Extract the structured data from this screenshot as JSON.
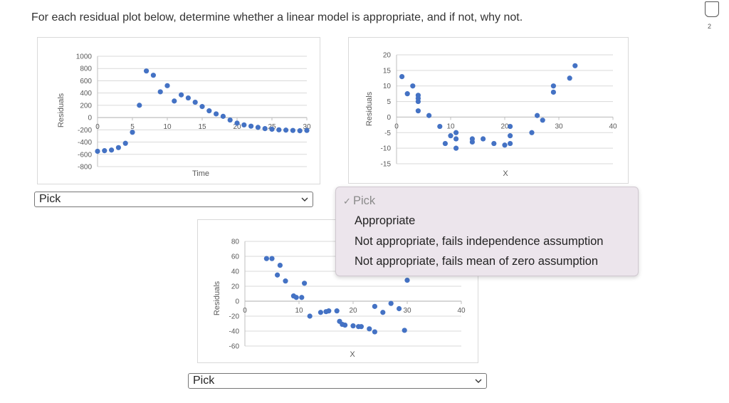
{
  "question": "For each residual plot below, determine whether a linear model is appropriate, and if not, why not.",
  "badge_number": "2",
  "selects": [
    {
      "value": "Pick"
    },
    {
      "value": "Pick"
    }
  ],
  "dropdown": {
    "check": "✓",
    "options": [
      "Pick",
      "Appropriate",
      "Not appropriate, fails independence assumption",
      "Not appropriate, fails mean of zero assumption"
    ],
    "selected": "Pick"
  },
  "colors": {
    "point": "#4472c4",
    "grid": "#d9d9d9",
    "axis": "#bfbfbf",
    "tick": "#595959"
  },
  "chart_data": [
    {
      "type": "scatter",
      "ylabel": "Residuals",
      "xlabel": "Time",
      "xlim": [
        0,
        30
      ],
      "ylim": [
        -800,
        1000
      ],
      "xticks": [
        "0",
        "5",
        "10",
        "15",
        "20",
        "25",
        "30"
      ],
      "yticks": [
        "1000",
        "800",
        "600",
        "400",
        "200",
        "0",
        "-200",
        "-400",
        "-600",
        "-800"
      ],
      "points": [
        [
          0,
          -550
        ],
        [
          1,
          -540
        ],
        [
          2,
          -530
        ],
        [
          3,
          -490
        ],
        [
          4,
          -420
        ],
        [
          5,
          -240
        ],
        [
          6,
          200
        ],
        [
          7,
          760
        ],
        [
          8,
          690
        ],
        [
          9,
          420
        ],
        [
          10,
          520
        ],
        [
          11,
          270
        ],
        [
          12,
          370
        ],
        [
          13,
          320
        ],
        [
          14,
          250
        ],
        [
          15,
          180
        ],
        [
          16,
          110
        ],
        [
          17,
          60
        ],
        [
          18,
          20
        ],
        [
          19,
          -40
        ],
        [
          20,
          -90
        ],
        [
          21,
          -120
        ],
        [
          22,
          -140
        ],
        [
          23,
          -160
        ],
        [
          24,
          -180
        ],
        [
          25,
          -190
        ],
        [
          26,
          -200
        ],
        [
          27,
          -205
        ],
        [
          28,
          -210
        ],
        [
          29,
          -215
        ],
        [
          30,
          -210
        ]
      ]
    },
    {
      "type": "scatter",
      "ylabel": "Residuals",
      "xlabel": "X",
      "xlim": [
        0,
        40
      ],
      "ylim": [
        -15,
        20
      ],
      "xticks": [
        "0",
        "10",
        "20",
        "30",
        "40"
      ],
      "yticks": [
        "20",
        "15",
        "10",
        "5",
        "0",
        "-5",
        "-10",
        "-15"
      ],
      "points": [
        [
          1,
          13
        ],
        [
          2,
          7.5
        ],
        [
          3,
          10
        ],
        [
          4,
          7
        ],
        [
          4,
          6
        ],
        [
          4,
          5
        ],
        [
          4,
          2
        ],
        [
          6,
          0.5
        ],
        [
          8,
          -3
        ],
        [
          9,
          -8.5
        ],
        [
          10,
          -6
        ],
        [
          11,
          -7
        ],
        [
          11,
          -5
        ],
        [
          11,
          -10
        ],
        [
          14,
          -7
        ],
        [
          14,
          -8
        ],
        [
          16,
          -7
        ],
        [
          18,
          -8.5
        ],
        [
          20,
          -9
        ],
        [
          21,
          -8.5
        ],
        [
          21,
          -6
        ],
        [
          21,
          -3
        ],
        [
          25,
          -5
        ],
        [
          26,
          0.5
        ],
        [
          27,
          -1
        ],
        [
          29,
          8
        ],
        [
          29,
          10
        ],
        [
          32,
          12.5
        ],
        [
          33,
          16.5
        ]
      ]
    },
    {
      "type": "scatter",
      "ylabel": "Residuals",
      "xlabel": "X",
      "xlim": [
        0,
        40
      ],
      "ylim": [
        -60,
        80
      ],
      "xticks": [
        "0",
        "10",
        "20",
        "30",
        "40"
      ],
      "yticks": [
        "80",
        "60",
        "40",
        "20",
        "0",
        "-20",
        "-40",
        "-60"
      ],
      "points": [
        [
          4,
          57
        ],
        [
          5,
          57
        ],
        [
          6,
          35
        ],
        [
          6.5,
          48
        ],
        [
          7.5,
          27
        ],
        [
          9,
          7
        ],
        [
          9.5,
          5
        ],
        [
          10.5,
          5
        ],
        [
          11,
          24
        ],
        [
          12,
          -20
        ],
        [
          14,
          -15
        ],
        [
          15,
          -14
        ],
        [
          15.5,
          -13
        ],
        [
          17,
          -13
        ],
        [
          17.5,
          -27
        ],
        [
          18,
          -31
        ],
        [
          18.5,
          -32
        ],
        [
          20,
          -33
        ],
        [
          21,
          -34
        ],
        [
          21.5,
          -34
        ],
        [
          23,
          -37
        ],
        [
          24,
          -41
        ],
        [
          24,
          -7
        ],
        [
          25.5,
          -15
        ],
        [
          27,
          -3
        ],
        [
          28.5,
          -10
        ],
        [
          29.5,
          -39
        ],
        [
          30,
          28
        ]
      ]
    }
  ]
}
